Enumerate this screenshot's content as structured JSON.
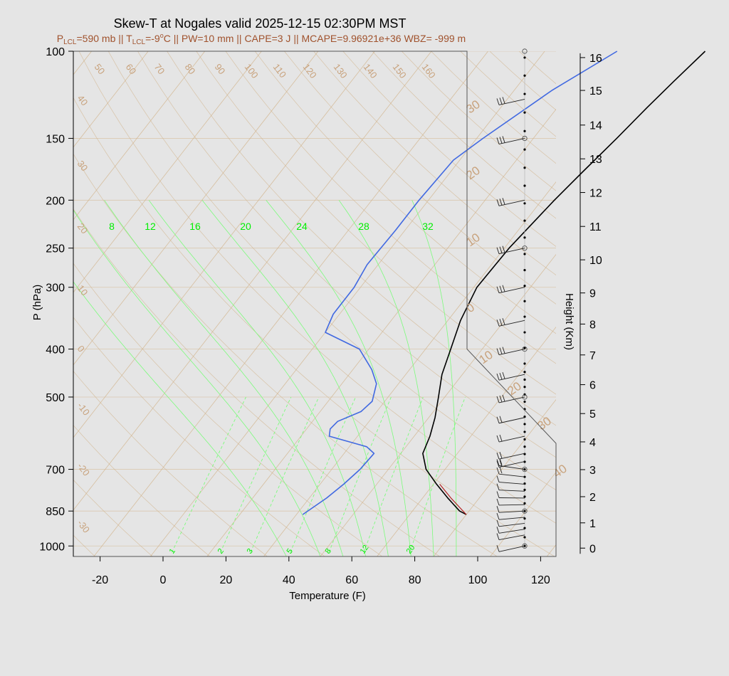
{
  "title": "Skew-T at Nogales valid 2025-12-15 02:30PM MST",
  "subtitle_parts": {
    "p_lcl_prefix": "P",
    "p_lcl_sub": "LCL",
    "p_lcl_value": "=590 mb || T",
    "t_lcl_sub": "LCL",
    "t_lcl_value": "=-9",
    "deg": "o",
    "rest": "C || PW=10 mm || CAPE=3 J || MCAPE=9.96921e+36 WBZ= -999 m"
  },
  "colors": {
    "temperature": "#000000",
    "dewpoint": "#4169e1",
    "isotherm": "#d2b48c",
    "mixing_ratio": "#7cfc7c",
    "moist_adiabat": "#7cfc7c",
    "parcel": "#b22222",
    "background": "#e5e5e5"
  },
  "chart_data": {
    "type": "skew-t",
    "xlabel": "Temperature (F)",
    "ylabel": "P (hPa)",
    "y2label": "Height (Km)",
    "x_ticks": [
      "-20",
      "0",
      "20",
      "40",
      "60",
      "80",
      "100",
      "120"
    ],
    "x_tick_values": [
      -20,
      0,
      20,
      40,
      60,
      80,
      100,
      120
    ],
    "xlim": [
      -28,
      125
    ],
    "p_ticks": [
      "100",
      "150",
      "200",
      "250",
      "300",
      "400",
      "500",
      "700",
      "850",
      "1000"
    ],
    "p_tick_values": [
      100,
      150,
      200,
      250,
      300,
      400,
      500,
      700,
      850,
      1000
    ],
    "ylim": [
      1050,
      100
    ],
    "height_ticks": [
      "0",
      "1",
      "2",
      "3",
      "4",
      "5",
      "6",
      "7",
      "8",
      "9",
      "10",
      "11",
      "12",
      "13",
      "14",
      "15",
      "16"
    ],
    "height_tick_pressures": [
      1010,
      898,
      795,
      701,
      616,
      540,
      472,
      411,
      356,
      308,
      264,
      226,
      193,
      165,
      141,
      120,
      103
    ],
    "isotherm_labels_top": [
      "50",
      "60",
      "70",
      "80",
      "90",
      "100",
      "110",
      "120",
      "130",
      "140",
      "150",
      "160"
    ],
    "isotherm_labels_left": [
      "40",
      "30",
      "20",
      "10",
      "0",
      "-10",
      "-20",
      "-30"
    ],
    "isotherm_labels_right": [
      "30",
      "20",
      "10",
      "0",
      "10",
      "20",
      "30",
      "40"
    ],
    "mixing_ratio_labels_top": [
      "8",
      "12",
      "16",
      "20",
      "24",
      "28",
      "32"
    ],
    "mixing_ratio_labels_bottom": [
      "1",
      "2",
      "3",
      "5",
      "8",
      "12",
      "20"
    ],
    "temperature": [
      {
        "p": 864,
        "t": 86
      },
      {
        "p": 850,
        "t": 83
      },
      {
        "p": 800,
        "t": 76
      },
      {
        "p": 750,
        "t": 69
      },
      {
        "p": 700,
        "t": 62
      },
      {
        "p": 650,
        "t": 57
      },
      {
        "p": 600,
        "t": 55
      },
      {
        "p": 550,
        "t": 52
      },
      {
        "p": 500,
        "t": 48
      },
      {
        "p": 450,
        "t": 43.5
      },
      {
        "p": 400,
        "t": 40
      },
      {
        "p": 350,
        "t": 36
      },
      {
        "p": 300,
        "t": 33
      },
      {
        "p": 250,
        "t": 33.5
      },
      {
        "p": 200,
        "t": 36
      },
      {
        "p": 175,
        "t": 38
      },
      {
        "p": 150,
        "t": 40.5
      },
      {
        "p": 130,
        "t": 42.5
      },
      {
        "p": 115,
        "t": 44.5
      },
      {
        "p": 100,
        "t": 47
      }
    ],
    "dewpoint": [
      {
        "p": 864,
        "t": 34
      },
      {
        "p": 800,
        "t": 37.5
      },
      {
        "p": 750,
        "t": 39.5
      },
      {
        "p": 700,
        "t": 41
      },
      {
        "p": 650,
        "t": 41.5
      },
      {
        "p": 630,
        "t": 37.5
      },
      {
        "p": 600,
        "t": 23
      },
      {
        "p": 580,
        "t": 21.5
      },
      {
        "p": 560,
        "t": 22
      },
      {
        "p": 535,
        "t": 27
      },
      {
        "p": 510,
        "t": 28
      },
      {
        "p": 470,
        "t": 25
      },
      {
        "p": 440,
        "t": 20
      },
      {
        "p": 400,
        "t": 11
      },
      {
        "p": 370,
        "t": -4
      },
      {
        "p": 340,
        "t": -6
      },
      {
        "p": 300,
        "t": -6
      },
      {
        "p": 270,
        "t": -7.5
      },
      {
        "p": 230,
        "t": -7
      },
      {
        "p": 200,
        "t": -7
      },
      {
        "p": 166,
        "t": -6
      },
      {
        "p": 150,
        "t": -2
      },
      {
        "p": 120,
        "t": 8
      },
      {
        "p": 100,
        "t": 19
      }
    ],
    "parcel": [
      {
        "p": 864,
        "t": 86
      },
      {
        "p": 800,
        "t": 77
      },
      {
        "p": 750,
        "t": 70
      }
    ],
    "wind_barbs_pressures": [
      1000,
      950,
      925,
      900,
      875,
      850,
      825,
      800,
      775,
      750,
      725,
      700,
      675,
      650,
      600,
      550,
      500,
      450,
      400,
      350,
      300,
      250,
      200,
      150,
      125
    ],
    "height_dots_pressures": [
      1000,
      960,
      920,
      880,
      850,
      820,
      795,
      770,
      748,
      725,
      700,
      676,
      652,
      630,
      609,
      588,
      567,
      548,
      529,
      511,
      494,
      477,
      461,
      445,
      428,
      398,
      370,
      344,
      320,
      298,
      277,
      257,
      238,
      220,
      203,
      187,
      172,
      158,
      145,
      133,
      122,
      112,
      103
    ]
  }
}
